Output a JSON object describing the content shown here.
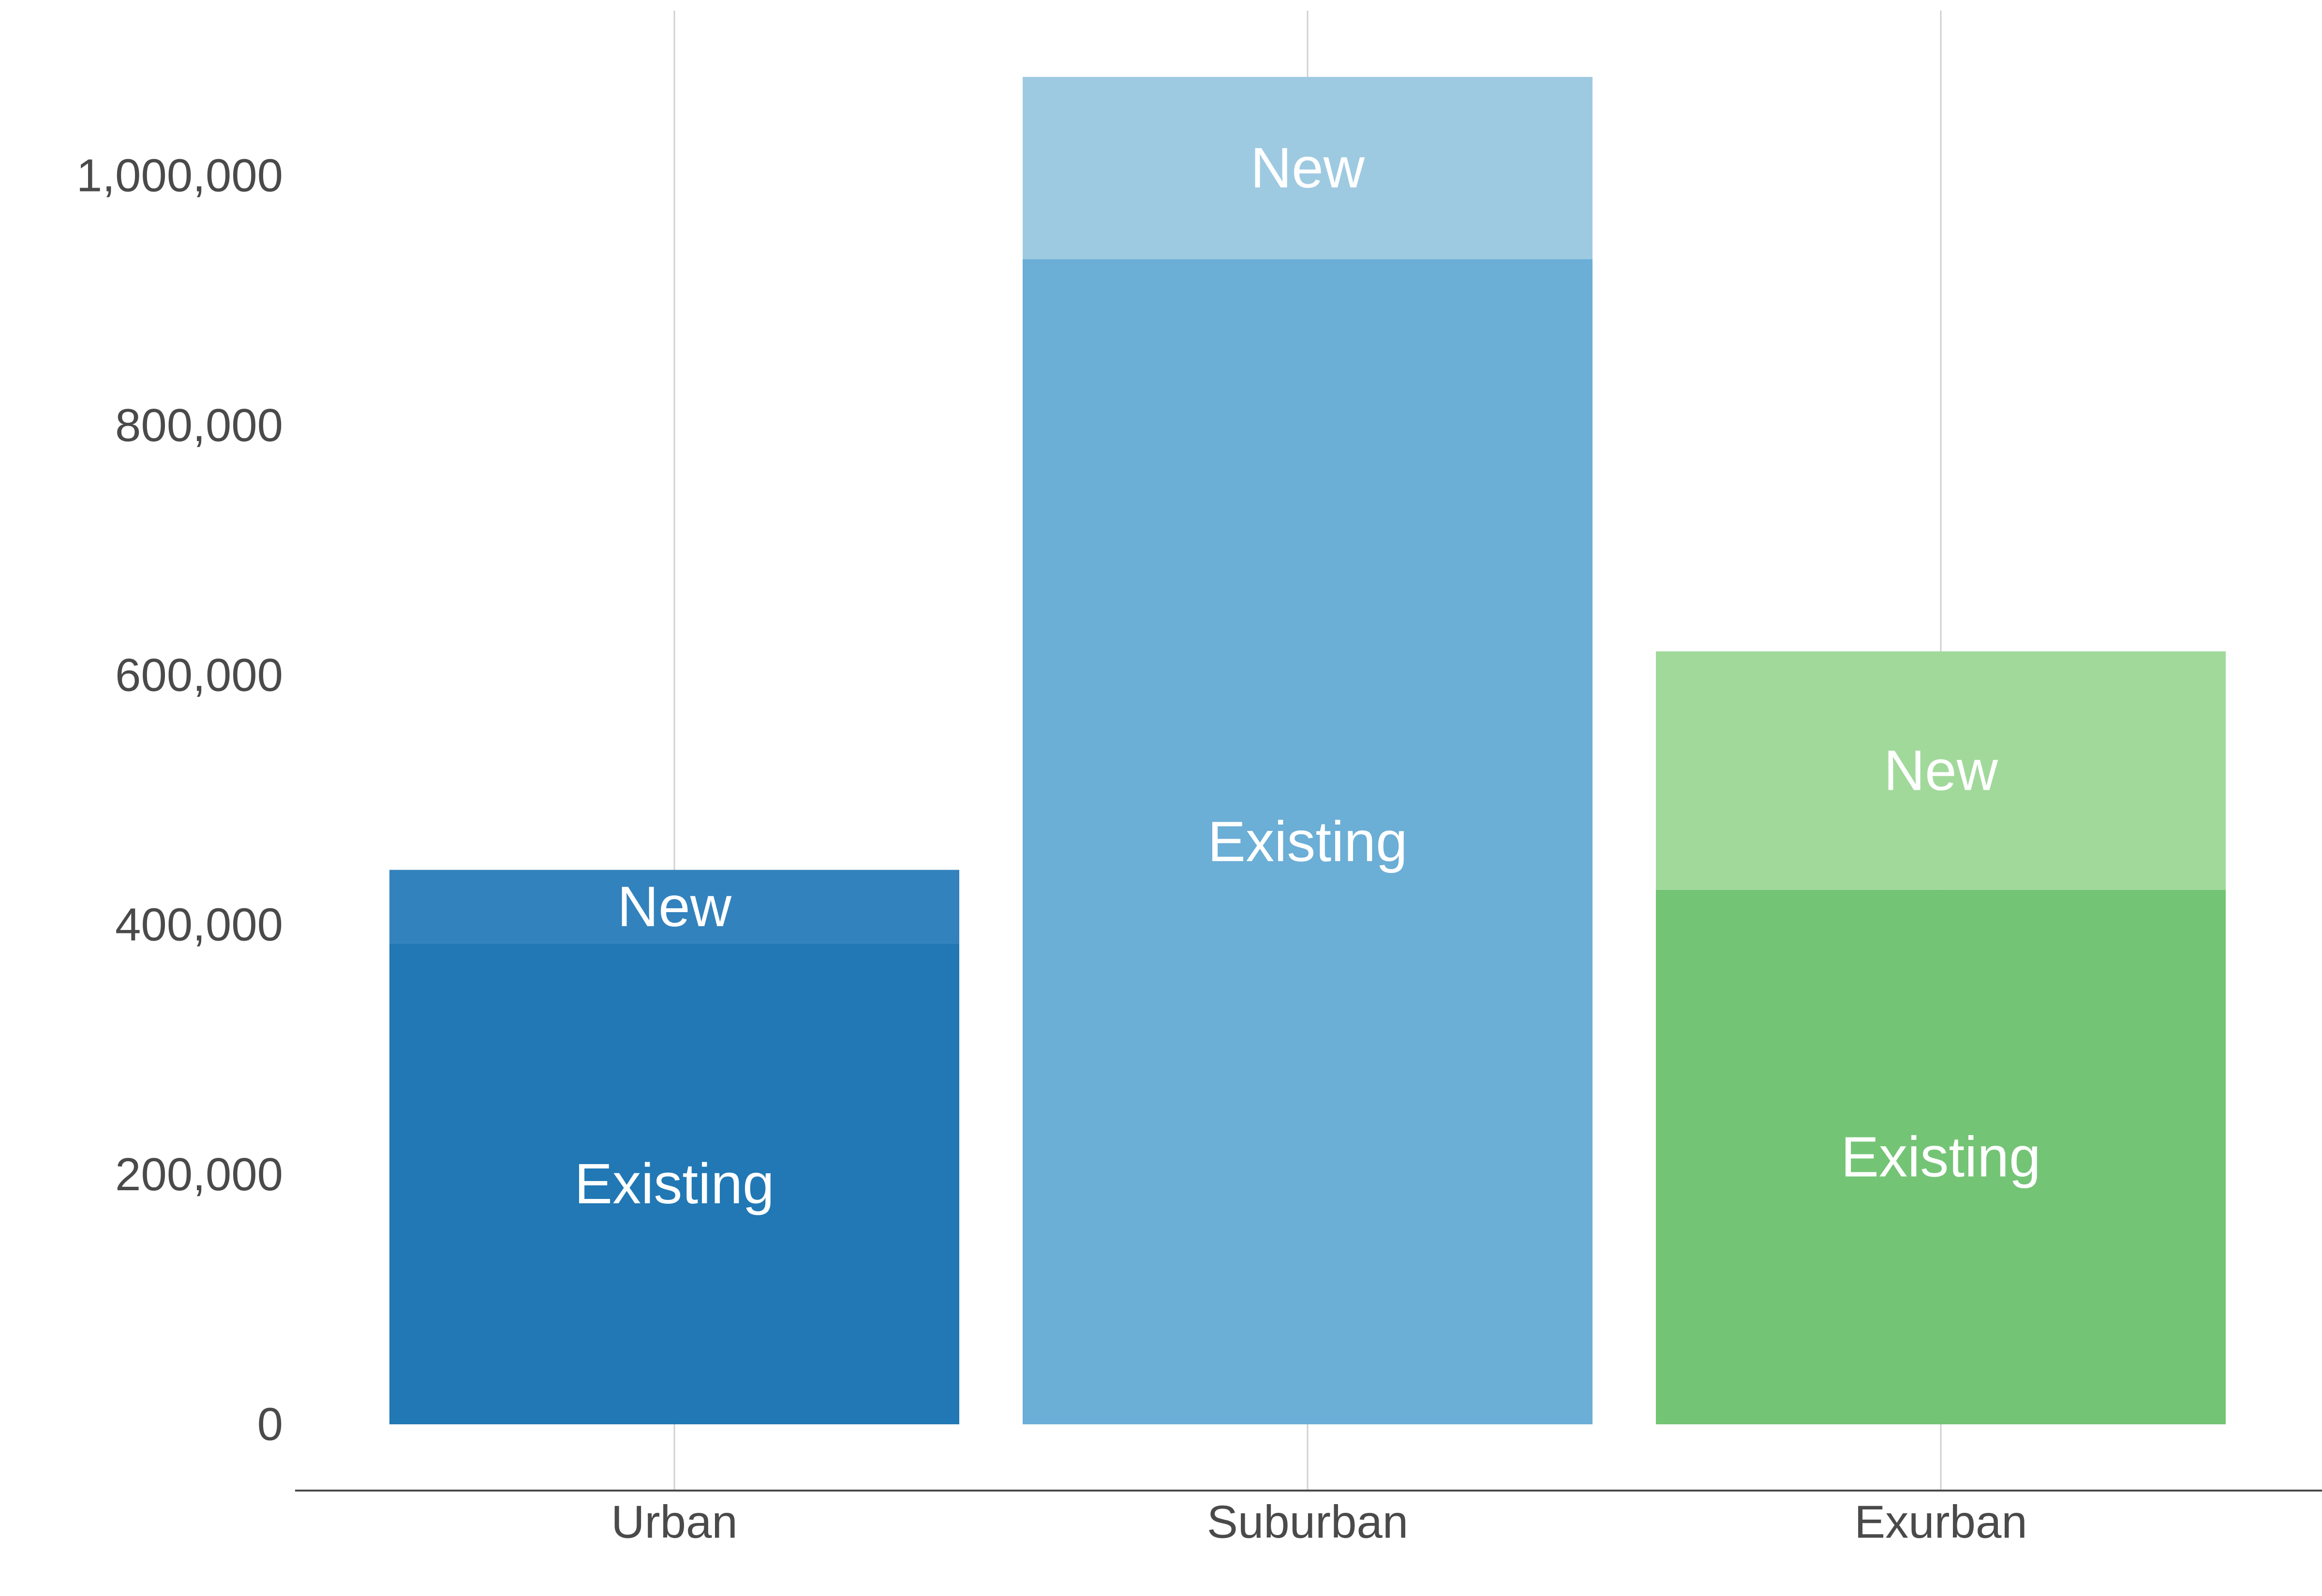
{
  "chart_data": {
    "type": "bar",
    "stacked": true,
    "categories": [
      "Urban",
      "Suburban",
      "Exurban"
    ],
    "series": [
      {
        "values": [
          385000,
          933000,
          428000
        ]
      },
      {
        "values": [
          59000,
          146000,
          191000
        ]
      }
    ],
    "segment_labels": [
      "Existing",
      "New"
    ],
    "bar_colors": [
      [
        "#2178b4",
        "#3282bd"
      ],
      [
        "#6baed6",
        "#9ecae1"
      ],
      [
        "#74c476",
        "#a1d99b"
      ]
    ],
    "ylim": [
      0,
      1100000
    ],
    "yticks": [
      0,
      200000,
      400000,
      600000,
      800000,
      1000000
    ],
    "ytick_labels": [
      "0",
      "200,000",
      "400,000",
      "600,000",
      "800,000",
      "1,000,000"
    ],
    "title": "",
    "xlabel": "",
    "ylabel": "",
    "grid": "vertical",
    "legend": "none"
  }
}
